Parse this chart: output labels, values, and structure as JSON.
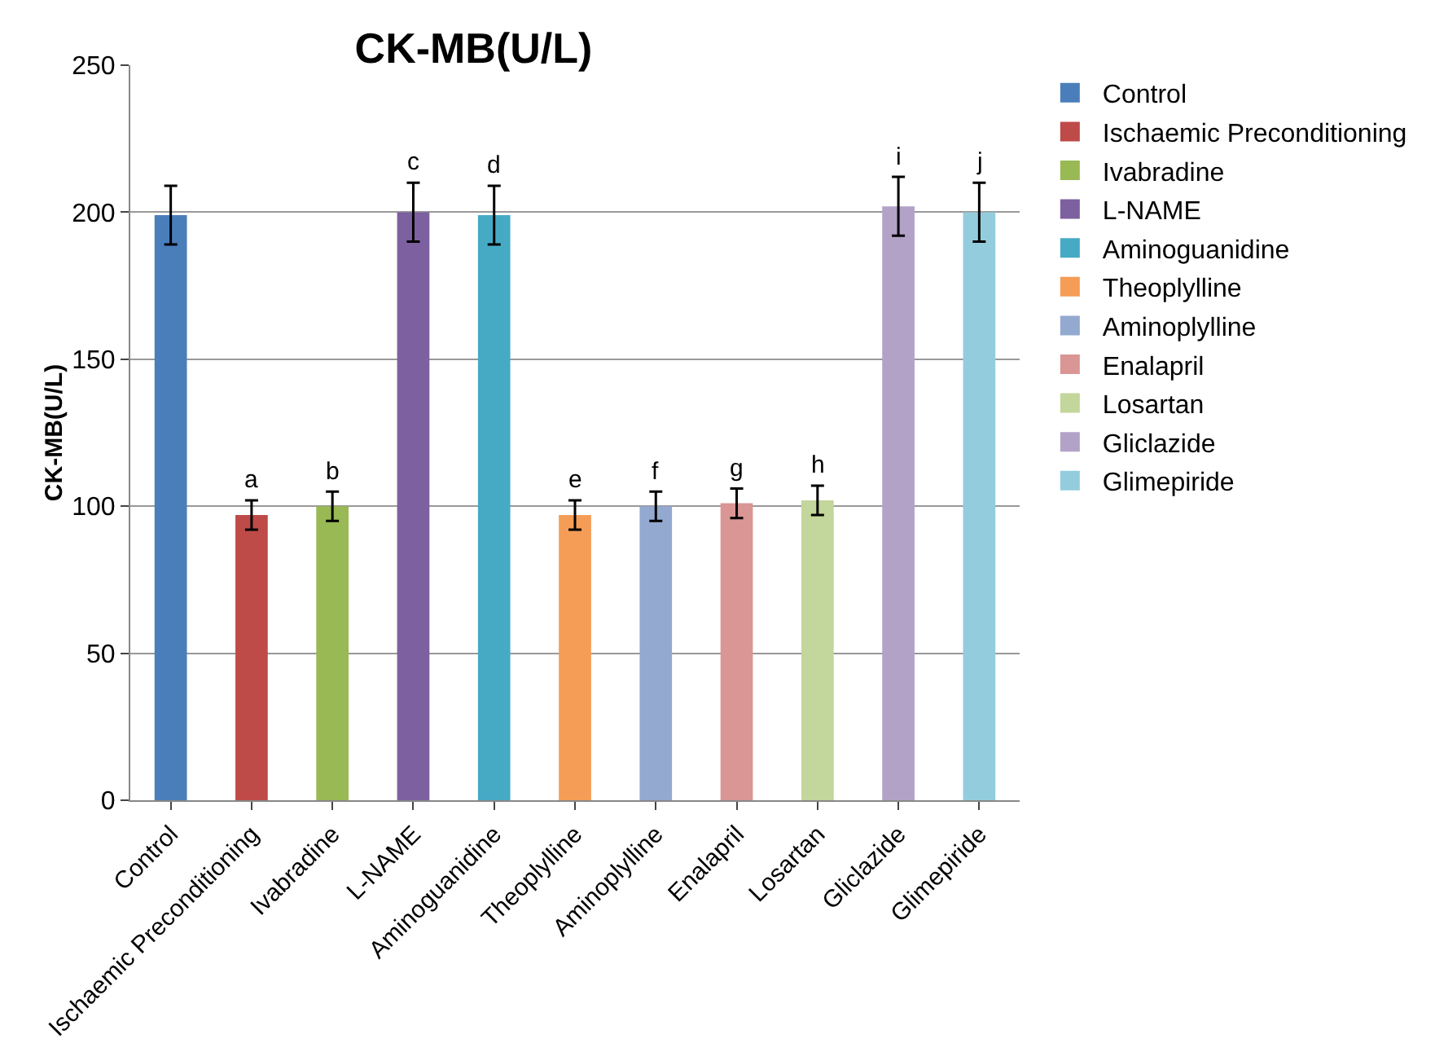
{
  "chart_data": {
    "type": "bar",
    "title": "CK-MB(U/L)",
    "ylabel": "CK-MB(U/L)",
    "categories": [
      "Control",
      "Ischaemic Preconditioning",
      "Ivabradine",
      "L-NAME",
      "Aminoguanidine",
      "Theoplylline",
      "Aminoplylline",
      "Enalapril",
      "Losartan",
      "Gliclazide",
      "Glimepiride"
    ],
    "series": [
      {
        "name": "Control",
        "color": "#4a7ebb",
        "values": [
          199,
          null,
          null,
          null,
          null,
          null,
          null,
          null,
          null,
          null,
          null
        ],
        "errors": [
          10,
          null,
          null,
          null,
          null,
          null,
          null,
          null,
          null,
          null,
          null
        ]
      },
      {
        "name": "Ischaemic Preconditioning",
        "color": "#be4b48",
        "values": [
          null,
          97,
          null,
          null,
          null,
          null,
          null,
          null,
          null,
          null,
          null
        ],
        "errors": [
          null,
          5,
          null,
          null,
          null,
          null,
          null,
          null,
          null,
          null,
          null
        ]
      },
      {
        "name": "Ivabradine",
        "color": "#98b954",
        "values": [
          null,
          null,
          100,
          null,
          null,
          null,
          null,
          null,
          null,
          null,
          null
        ],
        "errors": [
          null,
          null,
          5,
          null,
          null,
          null,
          null,
          null,
          null,
          null,
          null
        ]
      },
      {
        "name": "L-NAME",
        "color": "#7d60a0",
        "values": [
          null,
          null,
          null,
          200,
          null,
          null,
          null,
          null,
          null,
          null,
          null
        ],
        "errors": [
          null,
          null,
          null,
          10,
          null,
          null,
          null,
          null,
          null,
          null,
          null
        ]
      },
      {
        "name": "Aminoguanidine",
        "color": "#46aac5",
        "values": [
          null,
          null,
          null,
          null,
          199,
          null,
          null,
          null,
          null,
          null,
          null
        ],
        "errors": [
          null,
          null,
          null,
          null,
          10,
          null,
          null,
          null,
          null,
          null,
          null
        ]
      },
      {
        "name": "Theoplylline",
        "color": "#f59d56",
        "values": [
          null,
          null,
          null,
          null,
          null,
          97,
          null,
          null,
          null,
          null,
          null
        ],
        "errors": [
          null,
          null,
          null,
          null,
          null,
          5,
          null,
          null,
          null,
          null,
          null
        ]
      },
      {
        "name": "Aminoplylline",
        "color": "#93a9d0",
        "values": [
          null,
          null,
          null,
          null,
          null,
          null,
          100,
          null,
          null,
          null,
          null
        ],
        "errors": [
          null,
          null,
          null,
          null,
          null,
          null,
          5,
          null,
          null,
          null,
          null
        ]
      },
      {
        "name": "Enalapril",
        "color": "#d99694",
        "values": [
          null,
          null,
          null,
          null,
          null,
          null,
          null,
          101,
          null,
          null,
          null
        ],
        "errors": [
          null,
          null,
          null,
          null,
          null,
          null,
          null,
          5,
          null,
          null,
          null
        ]
      },
      {
        "name": "Losartan",
        "color": "#c3d69b",
        "values": [
          null,
          null,
          null,
          null,
          null,
          null,
          null,
          null,
          102,
          null,
          null
        ],
        "errors": [
          null,
          null,
          null,
          null,
          null,
          null,
          null,
          null,
          5,
          null,
          null
        ]
      },
      {
        "name": "Gliclazide",
        "color": "#b3a2c7",
        "values": [
          null,
          null,
          null,
          null,
          null,
          null,
          null,
          null,
          null,
          202,
          null
        ],
        "errors": [
          null,
          null,
          null,
          null,
          null,
          null,
          null,
          null,
          null,
          10,
          null
        ]
      },
      {
        "name": "Glimepiride",
        "color": "#93cddd",
        "values": [
          null,
          null,
          null,
          null,
          null,
          null,
          null,
          null,
          null,
          null,
          200
        ],
        "errors": [
          null,
          null,
          null,
          null,
          null,
          null,
          null,
          null,
          null,
          null,
          10
        ]
      }
    ],
    "annotations": [
      {
        "text": "a",
        "x": "Ischaemic Preconditioning",
        "y": 97
      },
      {
        "text": "b",
        "x": "Ivabradine",
        "y": 100
      },
      {
        "text": "c",
        "x": "L-NAME",
        "y": 200
      },
      {
        "text": "d",
        "x": "Aminoguanidine",
        "y": 199
      },
      {
        "text": "e",
        "x": "Theoplylline",
        "y": 97
      },
      {
        "text": "f",
        "x": "Aminoplylline",
        "y": 100
      },
      {
        "text": "g",
        "x": "Enalapril",
        "y": 101
      },
      {
        "text": "h",
        "x": "Losartan",
        "y": 102
      },
      {
        "text": "i",
        "x": "Gliclazide",
        "y": 202
      },
      {
        "text": "j",
        "x": "Glimepiride",
        "y": 200
      }
    ],
    "ylim": [
      0,
      250
    ],
    "yticks": [
      0,
      50,
      100,
      150,
      200,
      250
    ],
    "grid": "y",
    "legend": "right"
  }
}
